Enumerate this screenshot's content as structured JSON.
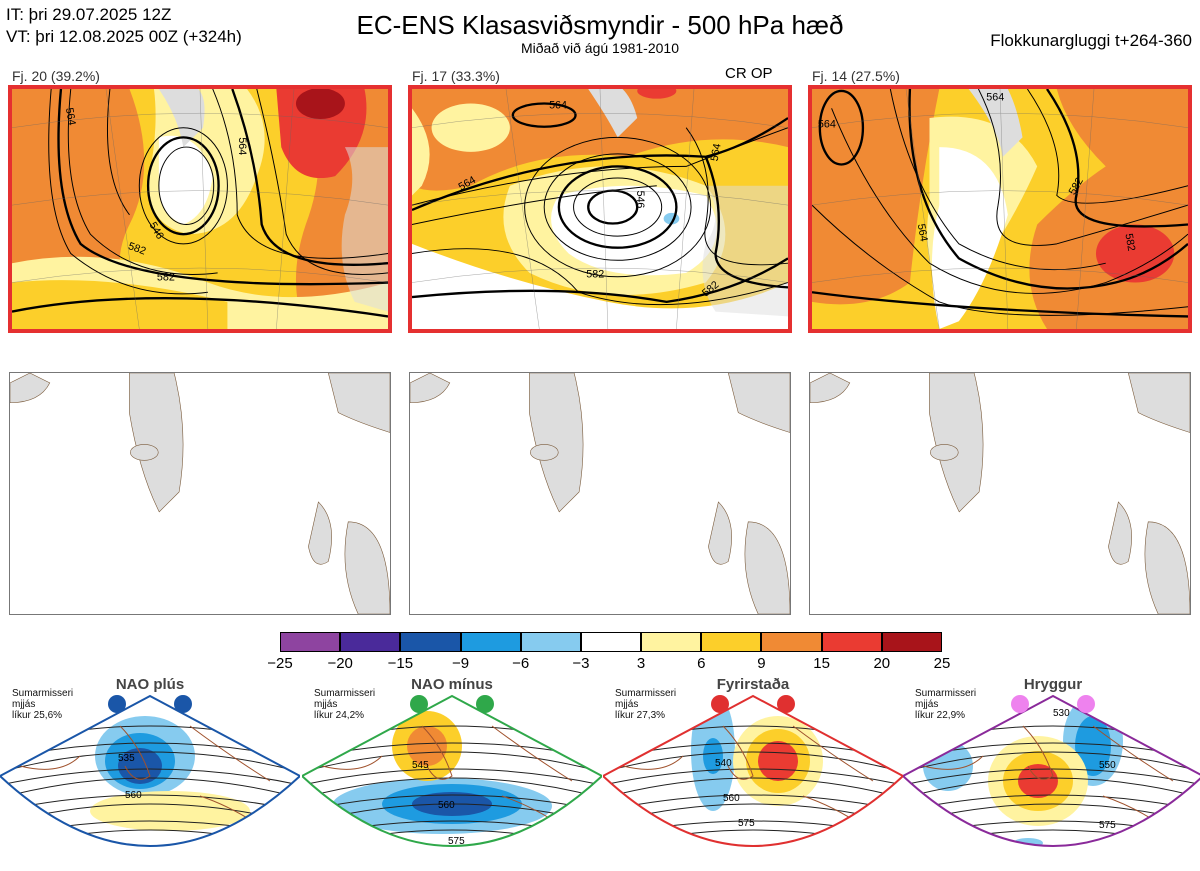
{
  "header": {
    "it_line": "IT: þri 29.07.2025 12Z",
    "vt_line": "VT: þri 12.08.2025 00Z  (+324h)",
    "title": "EC-ENS Klasasviðsmyndir - 500 hPa hæð",
    "subtitle": "Miðað við ágú 1981-2010",
    "window_label": "Flokkunargluggi t+264-360"
  },
  "clusters": [
    {
      "label": "Fj. 20 (39.2%)",
      "contours": [
        "564",
        "546",
        "564",
        "582",
        "582"
      ]
    },
    {
      "label": "Fj. 17 (33.3%)",
      "extra_label": "CR OP",
      "contours": [
        "564",
        "564",
        "546",
        "564",
        "582",
        "582"
      ]
    },
    {
      "label": "Fj. 14 (27.5%)",
      "contours": [
        "564",
        "564",
        "564",
        "582",
        "582"
      ]
    }
  ],
  "colorbar": {
    "ticks": [
      "−25",
      "−20",
      "−15",
      "−9",
      "−6",
      "−3",
      "3",
      "6",
      "9",
      "15",
      "20",
      "25"
    ],
    "colors": [
      "#8e44a0",
      "#4a2a9a",
      "#1a56a8",
      "#1e9be0",
      "#86cbef",
      "#ffffff",
      "#fff3a0",
      "#fccf2a",
      "#f08a34",
      "#ea3b32",
      "#a8141a"
    ]
  },
  "regimes": [
    {
      "name": "NAO plús",
      "note": [
        "Sumarmisseri",
        "mjjás",
        "líkur 25,6%"
      ],
      "border_color": "#1a56a8",
      "dot_color": "#1a56a8",
      "contours": [
        "535",
        "560"
      ]
    },
    {
      "name": "NAO mínus",
      "note": [
        "Sumarmisseri",
        "mjjás",
        "líkur 24,2%"
      ],
      "border_color": "#2fa84a",
      "dot_color": "#2fa84a",
      "contours": [
        "545",
        "560",
        "575"
      ]
    },
    {
      "name": "Fyrirstaða",
      "note": [
        "Sumarmisseri",
        "mjjás",
        "líkur 27,3%"
      ],
      "border_color": "#e03030",
      "dot_color": "#e03030",
      "contours": [
        "540",
        "560",
        "575"
      ]
    },
    {
      "name": "Hryggur",
      "note": [
        "Sumarmisseri",
        "mjjás",
        "líkur 22,9%"
      ],
      "border_color": "#8a2a9a",
      "dot_color": "#ee82ee",
      "contours": [
        "530",
        "550",
        "575"
      ]
    }
  ]
}
